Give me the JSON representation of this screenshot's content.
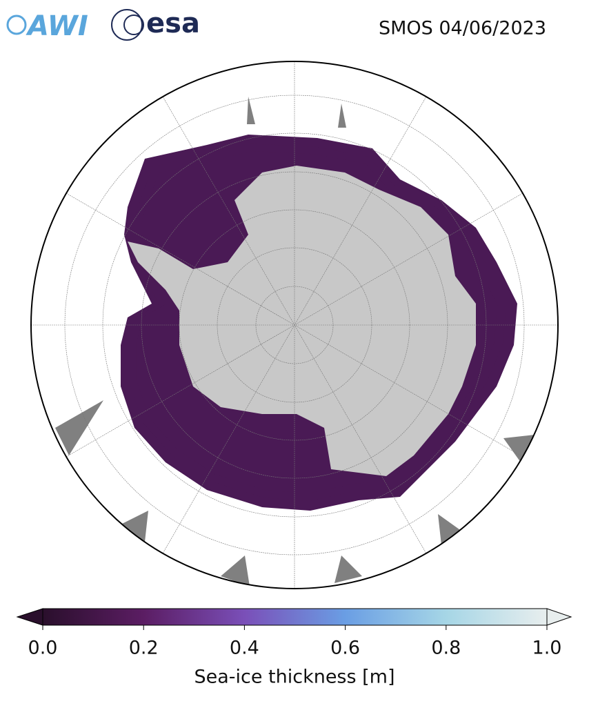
{
  "header": {
    "logos": [
      "AWI",
      "esa"
    ],
    "title": "SMOS 04/06/2023"
  },
  "colorbar": {
    "label": "Sea-ice thickness [m]",
    "range": [
      0,
      1
    ],
    "colors": [
      "#2a0f2c",
      "#5b1d63",
      "#7a4fb8",
      "#6a9ee4",
      "#a6d6e6",
      "#e8eeee"
    ],
    "ticks": [
      {
        "value": 0,
        "label": "0.0"
      },
      {
        "value": 0.2,
        "label": "0.2"
      },
      {
        "value": 0.4,
        "label": "0.4"
      },
      {
        "value": 0.6,
        "label": "0.6"
      },
      {
        "value": 0.8,
        "label": "0.8"
      },
      {
        "value": 1,
        "label": "1.0"
      }
    ]
  }
}
